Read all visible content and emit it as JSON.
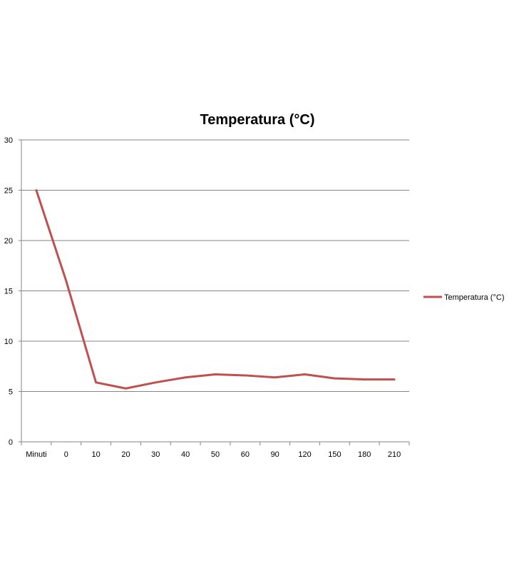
{
  "chart_data": {
    "type": "line",
    "title": "Temperatura (°C)",
    "categories": [
      "Minuti",
      "0",
      "10",
      "20",
      "30",
      "40",
      "50",
      "60",
      "90",
      "120",
      "150",
      "180",
      "210"
    ],
    "series": [
      {
        "name": "Temperatura (°C)",
        "values": [
          25,
          16,
          5.9,
          5.3,
          5.9,
          6.4,
          6.7,
          6.6,
          6.4,
          6.7,
          6.3,
          6.2,
          6.2
        ],
        "color": "#C0504D"
      }
    ],
    "ylim": [
      0,
      30
    ],
    "yticks": [
      0,
      5,
      10,
      15,
      20,
      25,
      30
    ],
    "grid": true,
    "legend": "right"
  }
}
